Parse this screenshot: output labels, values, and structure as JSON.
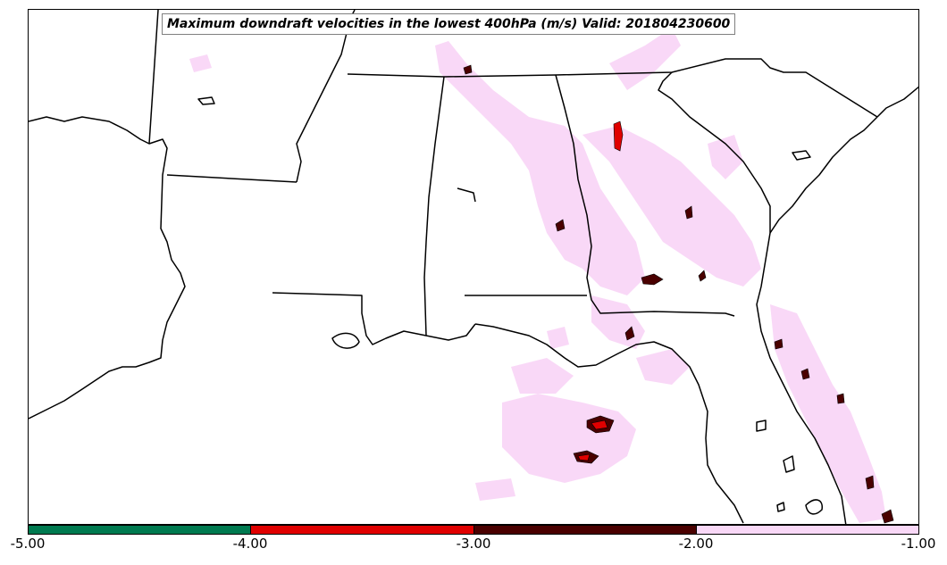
{
  "map": {
    "title": "Maximum downdraft velocities in the lowest 400hPa (m/s) Valid: 201804230600",
    "colors": {
      "coast": "#000000",
      "background": "#ffffff",
      "light_pink": "#f9d8f7",
      "dark_red": "#4a0000",
      "red": "#e00000",
      "green": "#007a50"
    }
  },
  "colorbar": {
    "ticks": [
      "-5.00",
      "-4.00",
      "-3.00",
      "-2.00",
      "-1.00"
    ],
    "bins": [
      {
        "range": "-5.00 to -4.00",
        "color": "#007a50"
      },
      {
        "range": "-4.00 to -3.00",
        "color": "#e00000"
      },
      {
        "range": "-3.00 to -2.00",
        "color": "#4a0000"
      },
      {
        "range": "-2.00 to -1.00",
        "color": "#f9d8f7"
      }
    ]
  }
}
